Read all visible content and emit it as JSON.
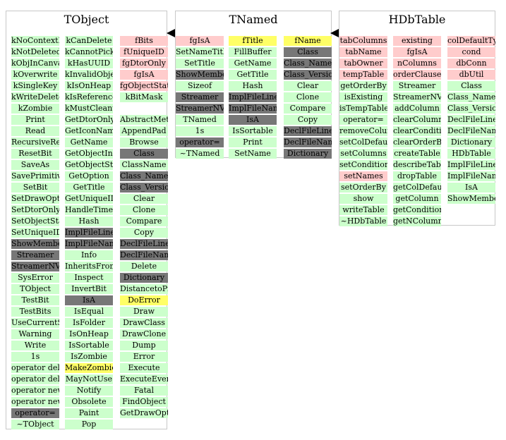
{
  "colors": {
    "method": "#ccffcc",
    "data_member": "#ffcccc",
    "highlight": "#ffff66",
    "inherited": "#777777"
  },
  "boxes": [
    {
      "title": "TObject",
      "columns": [
        [
          {
            "t": "kNoContextMenu",
            "c": "g"
          },
          {
            "t": "kNotDeleted",
            "c": "g"
          },
          {
            "t": "kObjInCanvas",
            "c": "g"
          },
          {
            "t": "kOverwrite",
            "c": "g"
          },
          {
            "t": "kSingleKey",
            "c": "g"
          },
          {
            "t": "kWriteDelete",
            "c": "g"
          },
          {
            "t": "kZombie",
            "c": "g"
          },
          {
            "t": "Print",
            "c": "g"
          },
          {
            "t": "Read",
            "c": "g"
          },
          {
            "t": "RecursiveRemove",
            "c": "g"
          },
          {
            "t": "ResetBit",
            "c": "g"
          },
          {
            "t": "SaveAs",
            "c": "g"
          },
          {
            "t": "SavePrimitive",
            "c": "g"
          },
          {
            "t": "SetBit",
            "c": "g"
          },
          {
            "t": "SetDrawOption",
            "c": "g"
          },
          {
            "t": "SetDtorOnly",
            "c": "g"
          },
          {
            "t": "SetObjectStat",
            "c": "g"
          },
          {
            "t": "SetUniqueID",
            "c": "g"
          },
          {
            "t": "ShowMembers",
            "c": "d"
          },
          {
            "t": "Streamer",
            "c": "d"
          },
          {
            "t": "StreamerNVirtual",
            "c": "d"
          },
          {
            "t": "SysError",
            "c": "g"
          },
          {
            "t": "TObject",
            "c": "g"
          },
          {
            "t": "TestBit",
            "c": "g"
          },
          {
            "t": "TestBits",
            "c": "g"
          },
          {
            "t": "UseCurrentStyle",
            "c": "g"
          },
          {
            "t": "Warning",
            "c": "g"
          },
          {
            "t": "Write",
            "c": "g"
          },
          {
            "t": "1s",
            "c": "g"
          },
          {
            "t": "operator delete",
            "c": "g"
          },
          {
            "t": "operator delete[]",
            "c": "g"
          },
          {
            "t": "operator new",
            "c": "g"
          },
          {
            "t": "operator new[]",
            "c": "g"
          },
          {
            "t": "operator=",
            "c": "d"
          },
          {
            "t": "~TObject",
            "c": "g"
          }
        ],
        [
          {
            "t": "kCanDelete",
            "c": "g"
          },
          {
            "t": "kCannotPick",
            "c": "g"
          },
          {
            "t": "kHasUUID",
            "c": "g"
          },
          {
            "t": "kInvalidObject",
            "c": "g"
          },
          {
            "t": "kIsOnHeap",
            "c": "g"
          },
          {
            "t": "kIsReferenced",
            "c": "g"
          },
          {
            "t": "kMustCleanup",
            "c": "g"
          },
          {
            "t": "GetDtorOnly",
            "c": "g"
          },
          {
            "t": "GetIconName",
            "c": "g"
          },
          {
            "t": "GetName",
            "c": "g"
          },
          {
            "t": "GetObjectInfo",
            "c": "g"
          },
          {
            "t": "GetObjectStat",
            "c": "g"
          },
          {
            "t": "GetOption",
            "c": "g"
          },
          {
            "t": "GetTitle",
            "c": "g"
          },
          {
            "t": "GetUniqueID",
            "c": "g"
          },
          {
            "t": "HandleTimer",
            "c": "g"
          },
          {
            "t": "Hash",
            "c": "g"
          },
          {
            "t": "ImplFileLine",
            "c": "d"
          },
          {
            "t": "ImplFileName",
            "c": "d"
          },
          {
            "t": "Info",
            "c": "g"
          },
          {
            "t": "InheritsFrom",
            "c": "g"
          },
          {
            "t": "Inspect",
            "c": "g"
          },
          {
            "t": "InvertBit",
            "c": "g"
          },
          {
            "t": "IsA",
            "c": "d"
          },
          {
            "t": "IsEqual",
            "c": "g"
          },
          {
            "t": "IsFolder",
            "c": "g"
          },
          {
            "t": "IsOnHeap",
            "c": "g"
          },
          {
            "t": "IsSortable",
            "c": "g"
          },
          {
            "t": "IsZombie",
            "c": "g"
          },
          {
            "t": "MakeZombie",
            "c": "y"
          },
          {
            "t": "MayNotUse",
            "c": "g"
          },
          {
            "t": "Notify",
            "c": "g"
          },
          {
            "t": "Obsolete",
            "c": "g"
          },
          {
            "t": "Paint",
            "c": "g"
          },
          {
            "t": "Pop",
            "c": "g"
          }
        ],
        [
          {
            "t": "fBits",
            "c": "p"
          },
          {
            "t": "fUniqueID",
            "c": "p"
          },
          {
            "t": "fgDtorOnly",
            "c": "p"
          },
          {
            "t": "fgIsA",
            "c": "p"
          },
          {
            "t": "fgObjectStat",
            "c": "p"
          },
          {
            "t": "kBitMask",
            "c": "g"
          },
          {
            "t": "",
            "c": ""
          },
          {
            "t": "AbstractMethod",
            "c": "g"
          },
          {
            "t": "AppendPad",
            "c": "g"
          },
          {
            "t": "Browse",
            "c": "g"
          },
          {
            "t": "Class",
            "c": "d"
          },
          {
            "t": "ClassName",
            "c": "g"
          },
          {
            "t": "Class_Name",
            "c": "d"
          },
          {
            "t": "Class_Version",
            "c": "d"
          },
          {
            "t": "Clear",
            "c": "g"
          },
          {
            "t": "Clone",
            "c": "g"
          },
          {
            "t": "Compare",
            "c": "g"
          },
          {
            "t": "Copy",
            "c": "g"
          },
          {
            "t": "DeclFileLine",
            "c": "d"
          },
          {
            "t": "DeclFileName",
            "c": "d"
          },
          {
            "t": "Delete",
            "c": "g"
          },
          {
            "t": "Dictionary",
            "c": "d"
          },
          {
            "t": "DistancetoPrimitive",
            "c": "g"
          },
          {
            "t": "DoError",
            "c": "y"
          },
          {
            "t": "Draw",
            "c": "g"
          },
          {
            "t": "DrawClass",
            "c": "g"
          },
          {
            "t": "DrawClone",
            "c": "g"
          },
          {
            "t": "Dump",
            "c": "g"
          },
          {
            "t": "Error",
            "c": "g"
          },
          {
            "t": "Execute",
            "c": "g"
          },
          {
            "t": "ExecuteEvent",
            "c": "g"
          },
          {
            "t": "Fatal",
            "c": "g"
          },
          {
            "t": "FindObject",
            "c": "g"
          },
          {
            "t": "GetDrawOption",
            "c": "g"
          }
        ]
      ]
    },
    {
      "title": "TNamed",
      "columns": [
        [
          {
            "t": "fgIsA",
            "c": "p"
          },
          {
            "t": "SetNameTitle",
            "c": "g"
          },
          {
            "t": "SetTitle",
            "c": "g"
          },
          {
            "t": "ShowMembers",
            "c": "d"
          },
          {
            "t": "Sizeof",
            "c": "g"
          },
          {
            "t": "Streamer",
            "c": "d"
          },
          {
            "t": "StreamerNVirtual",
            "c": "d"
          },
          {
            "t": "TNamed",
            "c": "g"
          },
          {
            "t": "1s",
            "c": "g"
          },
          {
            "t": "operator=",
            "c": "d"
          },
          {
            "t": "~TNamed",
            "c": "g"
          }
        ],
        [
          {
            "t": "fTitle",
            "c": "y"
          },
          {
            "t": "FillBuffer",
            "c": "g"
          },
          {
            "t": "GetName",
            "c": "g"
          },
          {
            "t": "GetTitle",
            "c": "g"
          },
          {
            "t": "Hash",
            "c": "g"
          },
          {
            "t": "ImplFileLine",
            "c": "d"
          },
          {
            "t": "ImplFileName",
            "c": "d"
          },
          {
            "t": "IsA",
            "c": "d"
          },
          {
            "t": "IsSortable",
            "c": "g"
          },
          {
            "t": "Print",
            "c": "g"
          },
          {
            "t": "SetName",
            "c": "g"
          }
        ],
        [
          {
            "t": "fName",
            "c": "y"
          },
          {
            "t": "Class",
            "c": "d"
          },
          {
            "t": "Class_Name",
            "c": "d"
          },
          {
            "t": "Class_Version",
            "c": "d"
          },
          {
            "t": "Clear",
            "c": "g"
          },
          {
            "t": "Clone",
            "c": "g"
          },
          {
            "t": "Compare",
            "c": "g"
          },
          {
            "t": "Copy",
            "c": "g"
          },
          {
            "t": "DeclFileLine",
            "c": "d"
          },
          {
            "t": "DeclFileName",
            "c": "d"
          },
          {
            "t": "Dictionary",
            "c": "d"
          }
        ]
      ]
    },
    {
      "title": "HDbTable",
      "columns": [
        [
          {
            "t": "tabColumns",
            "c": "p"
          },
          {
            "t": "tabName",
            "c": "p"
          },
          {
            "t": "tabOwner",
            "c": "p"
          },
          {
            "t": "tempTable",
            "c": "p"
          },
          {
            "t": "getOrderBy",
            "c": "g"
          },
          {
            "t": "isExisting",
            "c": "g"
          },
          {
            "t": "isTempTable",
            "c": "g"
          },
          {
            "t": "operator=",
            "c": "g"
          },
          {
            "t": "removeColumn",
            "c": "g"
          },
          {
            "t": "setColDefaultType",
            "c": "g"
          },
          {
            "t": "setColumns",
            "c": "g"
          },
          {
            "t": "setCondition",
            "c": "g"
          },
          {
            "t": "setNames",
            "c": "p"
          },
          {
            "t": "setOrderBy",
            "c": "g"
          },
          {
            "t": "show",
            "c": "g"
          },
          {
            "t": "writeTable",
            "c": "g"
          },
          {
            "t": "~HDbTable",
            "c": "g"
          }
        ],
        [
          {
            "t": "existing",
            "c": "p"
          },
          {
            "t": "fgIsA",
            "c": "p"
          },
          {
            "t": "nColumns",
            "c": "p"
          },
          {
            "t": "orderClause",
            "c": "p"
          },
          {
            "t": "Streamer",
            "c": "g"
          },
          {
            "t": "StreamerNVirtual",
            "c": "g"
          },
          {
            "t": "addColumn",
            "c": "g"
          },
          {
            "t": "clearColumns",
            "c": "g"
          },
          {
            "t": "clearCondition",
            "c": "g"
          },
          {
            "t": "clearOrderBy",
            "c": "g"
          },
          {
            "t": "createTable",
            "c": "g"
          },
          {
            "t": "describeTable",
            "c": "g"
          },
          {
            "t": "dropTable",
            "c": "g"
          },
          {
            "t": "getColDefaultType",
            "c": "g"
          },
          {
            "t": "getColumn",
            "c": "g"
          },
          {
            "t": "getCondition",
            "c": "g"
          },
          {
            "t": "getNColumns",
            "c": "g"
          }
        ],
        [
          {
            "t": "colDefaultType",
            "c": "p"
          },
          {
            "t": "cond",
            "c": "p"
          },
          {
            "t": "dbConn",
            "c": "p"
          },
          {
            "t": "dbUtil",
            "c": "p"
          },
          {
            "t": "Class",
            "c": "g"
          },
          {
            "t": "Class_Name",
            "c": "g"
          },
          {
            "t": "Class_Version",
            "c": "g"
          },
          {
            "t": "DeclFileLine",
            "c": "g"
          },
          {
            "t": "DeclFileName",
            "c": "g"
          },
          {
            "t": "Dictionary",
            "c": "g"
          },
          {
            "t": "HDbTable",
            "c": "g"
          },
          {
            "t": "ImplFileLine",
            "c": "g"
          },
          {
            "t": "ImplFileName",
            "c": "g"
          },
          {
            "t": "IsA",
            "c": "g"
          },
          {
            "t": "ShowMembers",
            "c": "g"
          }
        ]
      ]
    }
  ]
}
